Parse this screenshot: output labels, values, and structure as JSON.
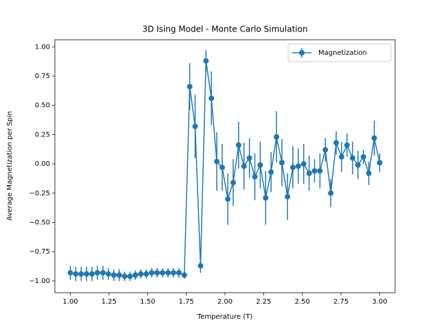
{
  "chart_data": {
    "type": "errorbar",
    "title": "3D Ising Model - Monte Carlo Simulation",
    "x_label": "Temperature (T)",
    "y_label": "Average Magnetization per Spin",
    "x": [
      1.0,
      1.035,
      1.07,
      1.105,
      1.14,
      1.175,
      1.211,
      1.246,
      1.281,
      1.316,
      1.351,
      1.386,
      1.421,
      1.456,
      1.491,
      1.526,
      1.561,
      1.596,
      1.632,
      1.667,
      1.702,
      1.737,
      1.772,
      1.807,
      1.842,
      1.877,
      1.912,
      1.947,
      1.982,
      2.018,
      2.053,
      2.088,
      2.123,
      2.158,
      2.193,
      2.228,
      2.263,
      2.298,
      2.333,
      2.368,
      2.404,
      2.439,
      2.474,
      2.509,
      2.544,
      2.579,
      2.614,
      2.649,
      2.684,
      2.719,
      2.754,
      2.789,
      2.825,
      2.86,
      2.895,
      2.93,
      2.965,
      3.0
    ],
    "series": [
      {
        "name": "Magnetization",
        "color": "#1f77b4",
        "values": [
          -0.93,
          -0.94,
          -0.94,
          -0.94,
          -0.94,
          -0.93,
          -0.93,
          -0.94,
          -0.95,
          -0.95,
          -0.96,
          -0.96,
          -0.95,
          -0.94,
          -0.94,
          -0.93,
          -0.93,
          -0.93,
          -0.93,
          -0.93,
          -0.93,
          -0.95,
          0.66,
          0.32,
          -0.87,
          0.88,
          0.56,
          0.02,
          -0.03,
          -0.3,
          -0.16,
          0.16,
          -0.02,
          0.05,
          -0.11,
          -0.01,
          -0.29,
          -0.07,
          0.23,
          0.01,
          -0.28,
          -0.03,
          -0.02,
          0.0,
          -0.08,
          -0.06,
          -0.06,
          0.12,
          -0.25,
          0.18,
          0.06,
          0.16,
          0.05,
          -0.01,
          0.06,
          -0.08,
          0.22,
          0.01
        ],
        "errors": [
          0.06,
          0.06,
          0.06,
          0.06,
          0.06,
          0.06,
          0.06,
          0.05,
          0.05,
          0.05,
          0.04,
          0.04,
          0.04,
          0.04,
          0.04,
          0.04,
          0.04,
          0.04,
          0.04,
          0.04,
          0.04,
          0.03,
          0.2,
          0.27,
          0.06,
          0.09,
          0.23,
          0.25,
          0.2,
          0.22,
          0.2,
          0.2,
          0.2,
          0.17,
          0.2,
          0.2,
          0.23,
          0.17,
          0.22,
          0.2,
          0.2,
          0.18,
          0.15,
          0.17,
          0.15,
          0.1,
          0.15,
          0.1,
          0.12,
          0.1,
          0.13,
          0.1,
          0.14,
          0.12,
          0.06,
          0.1,
          0.15,
          0.08
        ]
      }
    ],
    "xlim": [
      0.9,
      3.1
    ],
    "ylim": [
      -1.1,
      1.06
    ],
    "xticks": [
      {
        "value": 1,
        "label": "1.00"
      },
      {
        "value": 1.25,
        "label": "1.25"
      },
      {
        "value": 1.5,
        "label": "1.50"
      },
      {
        "value": 1.75,
        "label": "1.75"
      },
      {
        "value": 2,
        "label": "2.00"
      },
      {
        "value": 2.25,
        "label": "2.25"
      },
      {
        "value": 2.5,
        "label": "2.50"
      },
      {
        "value": 2.75,
        "label": "2.75"
      },
      {
        "value": 3,
        "label": "3.00"
      }
    ],
    "yticks": [
      {
        "value": -1,
        "label": "−1.00"
      },
      {
        "value": -0.75,
        "label": "−0.75"
      },
      {
        "value": -0.5,
        "label": "−0.50"
      },
      {
        "value": -0.25,
        "label": "−0.25"
      },
      {
        "value": 0,
        "label": "0.00"
      },
      {
        "value": 0.25,
        "label": "0.25"
      },
      {
        "value": 0.5,
        "label": "0.50"
      },
      {
        "value": 0.75,
        "label": "0.75"
      },
      {
        "value": 1,
        "label": "1.00"
      }
    ],
    "legend": "upper right"
  }
}
